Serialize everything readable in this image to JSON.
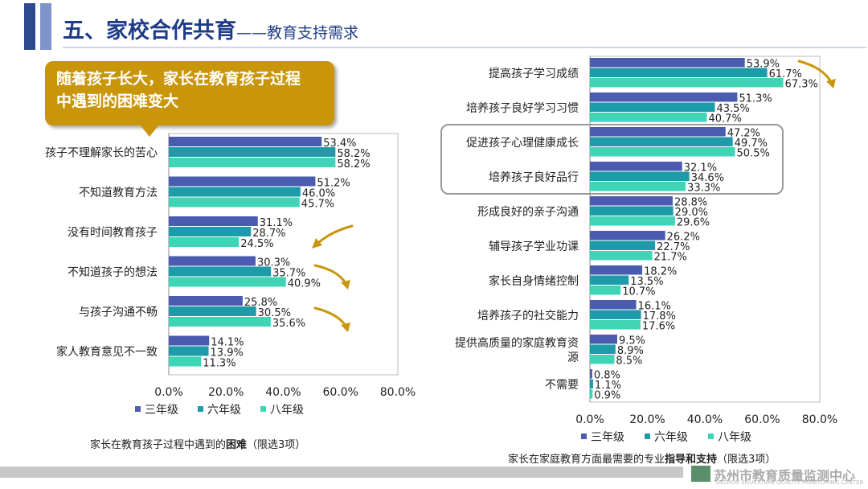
{
  "header": {
    "title": "五、家校合作共育",
    "subtitle": "——教育支持需求"
  },
  "callout": {
    "line1": "随着孩子长大，家长在教育孩子过程",
    "line2": "中遇到的困难变大"
  },
  "colors": {
    "g3": "#4a5bb0",
    "g6": "#1e9ba8",
    "g8": "#3fd4b6",
    "arrow": "#c9960b",
    "highlight": "#9a9a9a"
  },
  "chart_data": [
    {
      "type": "bar",
      "orientation": "horizontal",
      "title": "家长在教育孩子过程中遇到的困难（限选3项）",
      "caption_prefix": "家长在教育孩子过程中遇到的",
      "caption_bold": "困难",
      "caption_suffix": "（限选3项）",
      "categories": [
        "孩子不理解家长的苦心",
        "不知道教育方法",
        "没有时间教育孩子",
        "不知道孩子的想法",
        "与孩子沟通不畅",
        "家人教育意见不一致"
      ],
      "series": [
        {
          "name": "三年级",
          "values": [
            53.4,
            51.2,
            31.1,
            30.3,
            25.8,
            14.1
          ]
        },
        {
          "name": "六年级",
          "values": [
            58.2,
            46.0,
            28.7,
            35.7,
            30.5,
            13.9
          ]
        },
        {
          "name": "八年级",
          "values": [
            58.2,
            45.7,
            24.5,
            40.9,
            35.6,
            11.3
          ]
        }
      ],
      "xlim": [
        0,
        80
      ],
      "ticks": [
        "0.0%",
        "20.0%",
        "40.0%",
        "60.0%",
        "80.0%"
      ]
    },
    {
      "type": "bar",
      "orientation": "horizontal",
      "title": "家长在家庭教育方面最需要的专业指导和支持（限选3项）",
      "caption_prefix": "家长在家庭教育方面最需要的专业",
      "caption_bold": "指导和支持",
      "caption_suffix": "（限选3项）",
      "categories": [
        "提高孩子学习成绩",
        "培养孩子良好学习习惯",
        "促进孩子心理健康成长",
        "培养孩子良好品行",
        "形成良好的亲子沟通",
        "辅导孩子学业功课",
        "家长自身情绪控制",
        "培养孩子的社交能力",
        "提供高质量的家庭教育资源",
        "不需要"
      ],
      "series": [
        {
          "name": "三年级",
          "values": [
            53.9,
            51.3,
            47.2,
            32.1,
            28.8,
            26.2,
            18.2,
            16.1,
            9.5,
            0.8
          ]
        },
        {
          "name": "六年级",
          "values": [
            61.7,
            43.5,
            49.7,
            34.6,
            29.0,
            22.7,
            13.5,
            17.8,
            8.9,
            1.1
          ]
        },
        {
          "name": "八年级",
          "values": [
            67.3,
            40.7,
            50.5,
            33.3,
            29.6,
            21.7,
            10.7,
            17.6,
            8.5,
            0.9
          ]
        }
      ],
      "xlim": [
        0,
        80
      ],
      "ticks": [
        "0.0%",
        "20.0%",
        "40.0%",
        "60.0%",
        "80.0%"
      ]
    }
  ],
  "footer": {
    "logo": "苏州市教育质量监测中心",
    "logo_sub": "SUZHOU EDUCATION QUALITY MONITORING CENTER"
  }
}
